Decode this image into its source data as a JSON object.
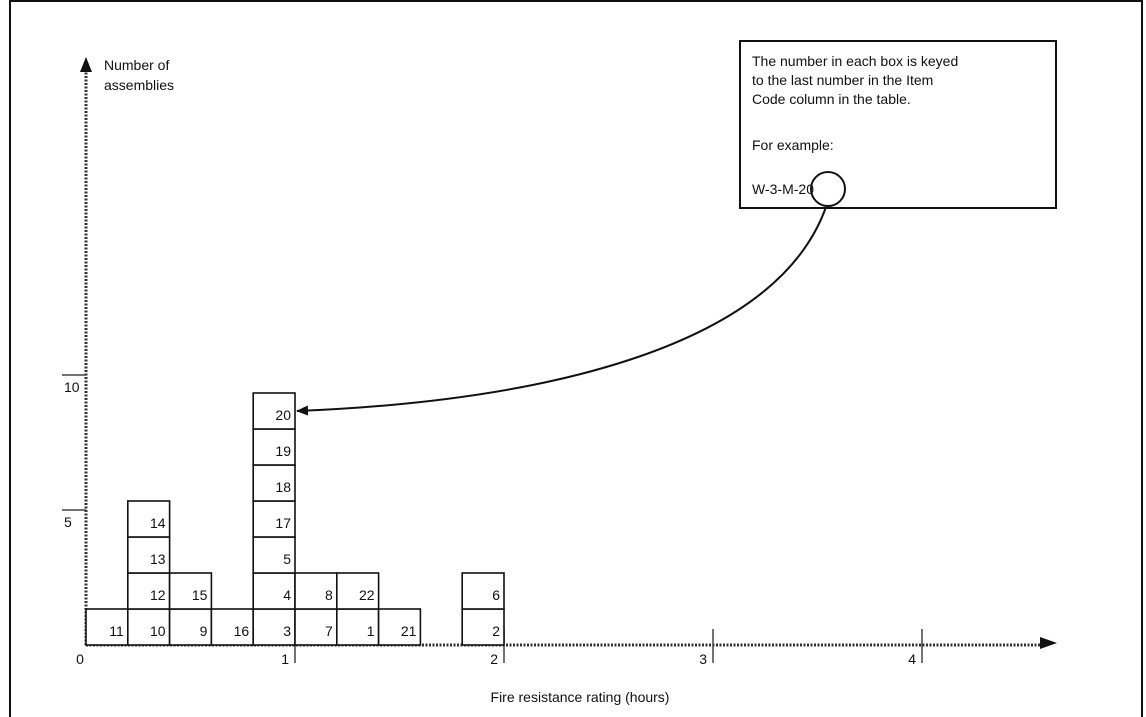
{
  "chart_data": {
    "type": "bar",
    "title": "",
    "xlabel": "Fire resistance rating (hours)",
    "ylabel": "Number of assemblies",
    "xlim": [
      0,
      4.5
    ],
    "ylim": [
      0,
      13
    ],
    "x_ticks": [
      {
        "value": 0,
        "label": "0"
      },
      {
        "value": 1,
        "label": "1"
      },
      {
        "value": 2,
        "label": "2"
      },
      {
        "value": 3,
        "label": "3"
      },
      {
        "value": 4,
        "label": "4"
      }
    ],
    "y_ticks": [
      {
        "value": 5,
        "label": "5"
      },
      {
        "value": 10,
        "label": "10"
      }
    ],
    "columns": [
      {
        "x_start": 0.0,
        "x_end": 0.2,
        "items": [
          "11"
        ]
      },
      {
        "x_start": 0.2,
        "x_end": 0.4,
        "items": [
          "10",
          "12",
          "13",
          "14"
        ]
      },
      {
        "x_start": 0.4,
        "x_end": 0.6,
        "items": [
          "9",
          "15"
        ]
      },
      {
        "x_start": 0.6,
        "x_end": 0.8,
        "items": [
          "16"
        ]
      },
      {
        "x_start": 0.8,
        "x_end": 1.0,
        "items": [
          "3",
          "4",
          "5",
          "17",
          "18",
          "19",
          "20"
        ]
      },
      {
        "x_start": 1.0,
        "x_end": 1.2,
        "items": [
          "7",
          "8"
        ]
      },
      {
        "x_start": 1.2,
        "x_end": 1.4,
        "items": [
          "1",
          "22"
        ]
      },
      {
        "x_start": 1.4,
        "x_end": 1.6,
        "items": [
          "21"
        ]
      },
      {
        "x_start": 1.8,
        "x_end": 2.0,
        "items": [
          "2",
          "6"
        ]
      }
    ],
    "annotation": {
      "lines": [
        "The number in each box is keyed",
        "to the last number in the Item",
        "Code column in the table.",
        "",
        "For example:",
        "W-3-M-20"
      ],
      "example_prefix": "W-3-M-",
      "example_number": "20",
      "points_to": {
        "x": 0.9,
        "level": 7
      }
    },
    "grid": false,
    "legend": "none"
  }
}
